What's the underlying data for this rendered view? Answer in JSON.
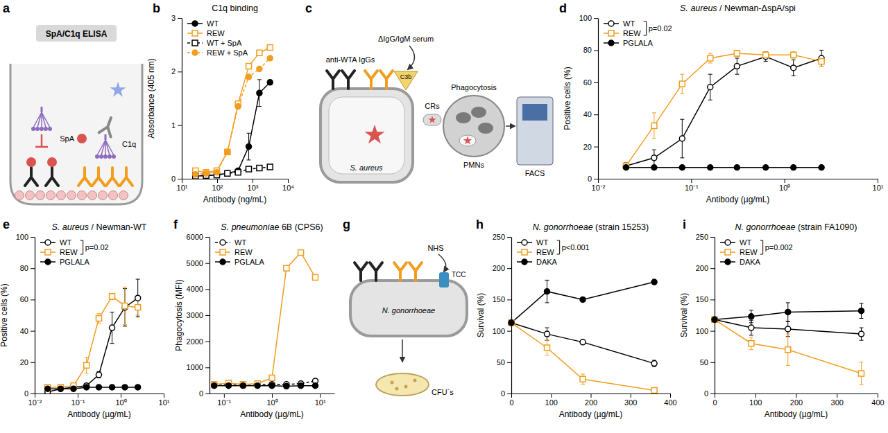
{
  "chart_data": [
    {
      "panel": "b",
      "type": "line",
      "title": "C1q binding",
      "xlabel": "Antibody (ng/mL)",
      "ylabel": "Absorbance (405 nm)",
      "log": "x",
      "legend": "top-left",
      "xlim": [
        10,
        10000
      ],
      "xticks": [
        {
          "value": 10,
          "label": "10¹"
        },
        {
          "value": 100,
          "label": "10²"
        },
        {
          "value": 1000,
          "label": "10³"
        },
        {
          "value": 10000,
          "label": "10⁴"
        }
      ],
      "ylim": [
        0,
        3
      ],
      "yticks": [
        0,
        1,
        2,
        3
      ],
      "x": [
        24.4,
        48.8,
        97.7,
        195.3,
        390.6,
        781.3,
        1562.5,
        3125
      ],
      "series": [
        {
          "name": "WT",
          "color": "#000000",
          "marker": "circle",
          "line_style": "solid",
          "values": [
            0.05,
            0.06,
            0.07,
            0.1,
            0.15,
            0.6,
            1.6,
            1.8
          ],
          "errors": [
            null,
            null,
            null,
            null,
            null,
            0.25,
            0.25,
            null
          ]
        },
        {
          "name": "REW",
          "color": "#f29d1f",
          "marker": "open-square",
          "line_style": "solid",
          "values": [
            0.15,
            0.12,
            0.15,
            0.5,
            1.4,
            2.1,
            2.35,
            2.45
          ]
        },
        {
          "name": "WT + SpA",
          "color": "#000000",
          "marker": "open-square",
          "line_style": "dashed",
          "values": [
            0.05,
            0.06,
            0.07,
            0.1,
            0.12,
            0.18,
            0.2,
            0.22
          ]
        },
        {
          "name": "REW + SpA",
          "color": "#f29d1f",
          "marker": "circle",
          "line_style": "dashed",
          "values": [
            0.08,
            0.1,
            0.12,
            0.5,
            1.35,
            1.9,
            2.05,
            2.25
          ]
        }
      ]
    },
    {
      "panel": "d",
      "type": "line",
      "title": "S. aureus / Newman-ΔspA/spi",
      "xlabel": "Antibody (µg/mL)",
      "ylabel": "Positive cells (%)",
      "log": "x",
      "legend": "top-left",
      "annotations": [
        "p=0.02"
      ],
      "xlim": [
        0.01,
        10
      ],
      "xticks": [
        {
          "value": 0.01,
          "label": "10⁻²"
        },
        {
          "value": 0.1,
          "label": "10⁻¹"
        },
        {
          "value": 1,
          "label": "10⁰"
        },
        {
          "value": 10,
          "label": "10¹"
        }
      ],
      "ylim": [
        0,
        100
      ],
      "yticks": [
        0,
        20,
        40,
        60,
        80,
        100
      ],
      "x": [
        0.02,
        0.04,
        0.08,
        0.16,
        0.31,
        0.63,
        1.25,
        2.5
      ],
      "series": [
        {
          "name": "WT",
          "color": "#000000",
          "marker": "open-circle",
          "line_style": "solid",
          "values": [
            8,
            13,
            25,
            57,
            70,
            76,
            69,
            75
          ],
          "errors": [
            2,
            5,
            12,
            8,
            5,
            3,
            5,
            5
          ]
        },
        {
          "name": "REW",
          "color": "#f29d1f",
          "marker": "open-square",
          "line_style": "solid",
          "values": [
            8,
            33,
            59,
            75,
            78,
            77,
            77,
            73
          ],
          "errors": [
            2,
            8,
            6,
            3,
            2,
            2,
            2,
            3
          ]
        },
        {
          "name": "PGLALA",
          "color": "#000000",
          "marker": "circle",
          "line_style": "solid",
          "values": [
            7,
            7,
            7,
            7,
            7,
            7,
            7,
            7
          ]
        }
      ]
    },
    {
      "panel": "e",
      "type": "line",
      "title": "S. aureus / Newman-WT",
      "xlabel": "Antibody (µg/mL)",
      "ylabel": "Positive cells (%)",
      "log": "x",
      "legend": "top-left",
      "annotations": [
        "p=0.02"
      ],
      "xlim": [
        0.01,
        10
      ],
      "xticks": [
        {
          "value": 0.01,
          "label": "10⁻²"
        },
        {
          "value": 0.1,
          "label": "10⁻¹"
        },
        {
          "value": 1,
          "label": "10⁰"
        },
        {
          "value": 10,
          "label": "10¹"
        }
      ],
      "ylim": [
        0,
        100
      ],
      "yticks": [
        0,
        20,
        40,
        60,
        80,
        100
      ],
      "x": [
        0.02,
        0.04,
        0.08,
        0.16,
        0.31,
        0.63,
        1.25,
        2.5
      ],
      "series": [
        {
          "name": "WT",
          "color": "#000000",
          "marker": "open-circle",
          "line_style": "solid",
          "values": [
            1,
            3,
            4,
            5,
            12,
            42,
            55,
            61
          ],
          "errors": [
            1,
            1,
            1,
            1,
            2,
            10,
            12,
            12
          ]
        },
        {
          "name": "REW",
          "color": "#f29d1f",
          "marker": "open-square",
          "line_style": "solid",
          "values": [
            4,
            4,
            5,
            18,
            48,
            62,
            56,
            55
          ],
          "errors": [
            1,
            1,
            1,
            5,
            3,
            2,
            12,
            5
          ]
        },
        {
          "name": "PGLALA",
          "color": "#000000",
          "marker": "circle",
          "line_style": "solid",
          "values": [
            3,
            3,
            3,
            4,
            4,
            4,
            4,
            4
          ]
        }
      ]
    },
    {
      "panel": "f",
      "type": "line",
      "title": "S. pneumoniae 6B (CPS6)",
      "xlabel": "Antibody (µg/mL)",
      "ylabel": "Phagocytosis (MFI)",
      "log": "x",
      "legend": "top-left",
      "xlim": [
        0.05,
        20
      ],
      "xticks": [
        {
          "value": 0.1,
          "label": "10⁻¹"
        },
        {
          "value": 1,
          "label": "10⁰"
        },
        {
          "value": 10,
          "label": "10¹"
        }
      ],
      "ylim": [
        0,
        6000
      ],
      "yticks": [
        0,
        1000,
        2000,
        3000,
        4000,
        5000,
        6000
      ],
      "x": [
        0.0625,
        0.125,
        0.25,
        0.5,
        1,
        2,
        4,
        8
      ],
      "series": [
        {
          "name": "WT",
          "color": "#000000",
          "marker": "open-circle",
          "line_style": "dashed",
          "values": [
            350,
            350,
            350,
            350,
            350,
            350,
            380,
            480
          ]
        },
        {
          "name": "REW",
          "color": "#f29d1f",
          "marker": "open-square",
          "line_style": "solid",
          "values": [
            350,
            400,
            350,
            380,
            600,
            4800,
            5400,
            4450
          ]
        },
        {
          "name": "PGLALA",
          "color": "#000000",
          "marker": "circle",
          "line_style": "solid",
          "values": [
            300,
            300,
            300,
            300,
            300,
            280,
            300,
            300
          ]
        }
      ]
    },
    {
      "panel": "h",
      "type": "line",
      "title": "N. gonorrhoeae (strain 15253)",
      "xlabel": "Antibody (µg/mL)",
      "ylabel": "Survival (%)",
      "legend": "top-left",
      "annotations": [
        "p<0.001"
      ],
      "xlim": [
        0,
        400
      ],
      "xticks": [
        0,
        100,
        200,
        300,
        400
      ],
      "ylim": [
        0,
        250
      ],
      "yticks": [
        0,
        50,
        100,
        150,
        200,
        250
      ],
      "x": [
        0,
        90,
        180,
        360
      ],
      "series": [
        {
          "name": "WT",
          "color": "#000000",
          "marker": "open-circle",
          "line_style": "solid",
          "values": [
            113,
            95,
            82,
            48
          ],
          "errors": [
            null,
            10,
            3,
            5
          ]
        },
        {
          "name": "REW",
          "color": "#f29d1f",
          "marker": "open-square",
          "line_style": "solid",
          "values": [
            113,
            73,
            23,
            5
          ],
          "errors": [
            null,
            12,
            8,
            3
          ]
        },
        {
          "name": "DAKA",
          "color": "#000000",
          "marker": "circle",
          "line_style": "solid",
          "values": [
            113,
            163,
            150,
            178
          ],
          "errors": [
            null,
            18,
            null,
            null
          ]
        }
      ]
    },
    {
      "panel": "i",
      "type": "line",
      "title": "N. gonorrhoeae (strain FA1090)",
      "xlabel": "Antibody (µg/mL)",
      "ylabel": "Survival (%)",
      "legend": "top-left",
      "annotations": [
        "p=0.002"
      ],
      "xlim": [
        0,
        400
      ],
      "xticks": [
        0,
        100,
        200,
        300,
        400
      ],
      "ylim": [
        0,
        250
      ],
      "yticks": [
        0,
        50,
        100,
        150,
        200,
        250
      ],
      "x": [
        0,
        90,
        180,
        360
      ],
      "series": [
        {
          "name": "WT",
          "color": "#000000",
          "marker": "open-circle",
          "line_style": "solid",
          "values": [
            118,
            105,
            103,
            95
          ],
          "errors": [
            null,
            12,
            12,
            10
          ]
        },
        {
          "name": "REW",
          "color": "#f29d1f",
          "marker": "open-square",
          "line_style": "solid",
          "values": [
            118,
            80,
            70,
            32
          ],
          "errors": [
            null,
            10,
            25,
            18
          ]
        },
        {
          "name": "DAKA",
          "color": "#000000",
          "marker": "circle",
          "line_style": "solid",
          "values": [
            118,
            123,
            130,
            132
          ],
          "errors": [
            null,
            10,
            15,
            12
          ]
        }
      ]
    }
  ],
  "diagrams": [
    {
      "panel": "a",
      "title": "SpA/C1q ELISA",
      "labels": [
        "SpA",
        "C1q"
      ]
    },
    {
      "panel": "c",
      "labels": [
        "anti-WTA IgGs",
        "ΔIgG/IgM serum",
        "C3b",
        "CRs",
        "Phagocytosis",
        "S. aureus",
        "PMNs",
        "FACS"
      ]
    },
    {
      "panel": "g",
      "labels": [
        "NHS",
        "TCC",
        "N. gonorrhoeae",
        "CFU`s"
      ]
    }
  ]
}
